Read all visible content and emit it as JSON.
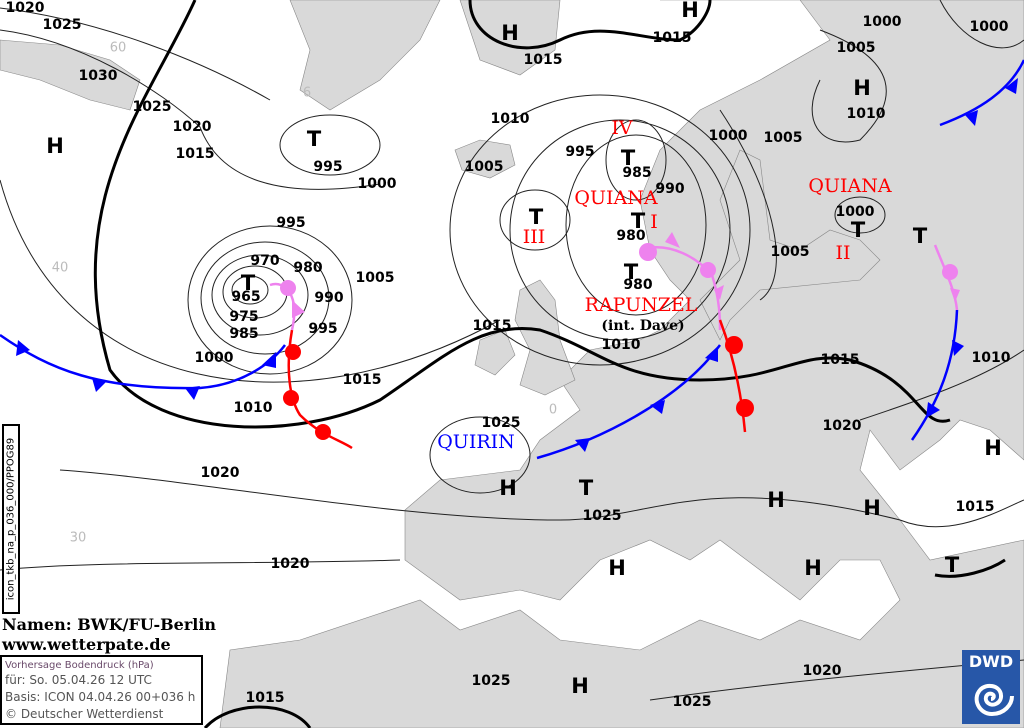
{
  "colors": {
    "land": "#d9d9d9",
    "sea": "#ffffff",
    "isobar": "#000000",
    "cold_front": "#0000ff",
    "warm_front": "#ff0000",
    "occlusion": "#ee82ee",
    "system_name": "#ff0000",
    "dwd_blue": "#2757a8"
  },
  "isobar_labels": [
    "1020",
    "1025",
    "1030",
    "1025",
    "1020",
    "1015",
    "995",
    "1000",
    "995",
    "970",
    "980",
    "965",
    "990",
    "975",
    "985",
    "995",
    "1005",
    "1000",
    "1015",
    "1010",
    "1020",
    "1020",
    "1015",
    "1010",
    "1005",
    "1015",
    "1015",
    "995",
    "985",
    "990",
    "980",
    "980",
    "1000",
    "1005",
    "1005",
    "1000",
    "1015",
    "1010",
    "1025",
    "1025",
    "1015",
    "1010",
    "1020",
    "1015",
    "1000",
    "1005",
    "1010",
    "1000",
    "1025",
    "1025",
    "1020"
  ],
  "pressure_systems": [
    "H",
    "T",
    "T",
    "H",
    "H",
    "T",
    "T",
    "T",
    "T",
    "H",
    "T",
    "T",
    "H",
    "T",
    "H",
    "H",
    "H",
    "H",
    "H",
    "T",
    "H"
  ],
  "system_names": {
    "iv": "IV",
    "quiana_1": "QUIANA",
    "i": "I",
    "iii": "III",
    "rapunzel": "RAPUNZEL",
    "rapunzel_int": "(int. Dave)",
    "quiana_2": "QUIANA",
    "ii": "II",
    "quirin": "QUIRIN"
  },
  "latitude_labels": [
    "60",
    "6",
    "40",
    "30",
    "0"
  ],
  "credit": {
    "names": "Namen: BWK/FU-Berlin",
    "website": "www.wetterpate.de"
  },
  "info": {
    "title": "Vorhersage Bodendruck (hPa)",
    "valid": "für:  So. 05.04.26  12 UTC",
    "basis": "Basis: ICON  04.04.26 00+036 h",
    "copyright": "© Deutscher Wetterdienst"
  },
  "product_code": "icon_tkb_na_p_036_000/PPOG89",
  "logo": {
    "text": "DWD"
  }
}
